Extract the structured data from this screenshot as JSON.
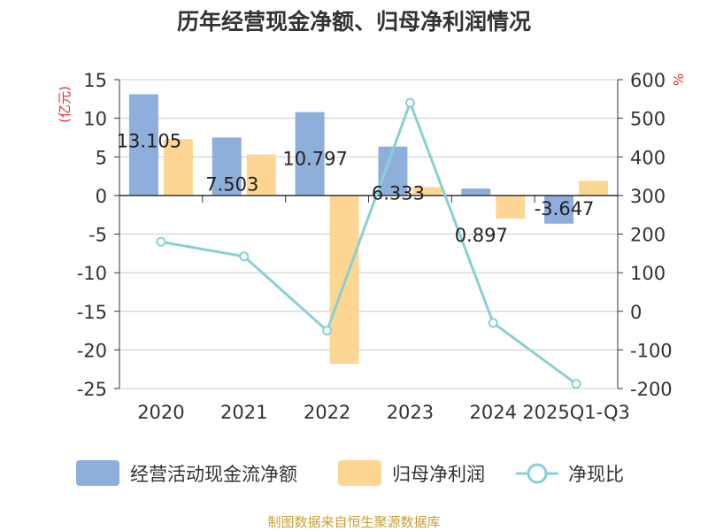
{
  "chart_data": {
    "type": "bar",
    "title": "历年经营现金净额、归母净利润情况",
    "categories": [
      "2020",
      "2021",
      "2022",
      "2023",
      "2024",
      "2025Q1-Q3"
    ],
    "series": [
      {
        "name": "经营活动现金流净额",
        "type": "bar",
        "axis": "left",
        "color": "#8eaedb",
        "values": [
          13.105,
          7.503,
          10.797,
          6.333,
          0.897,
          -3.647
        ],
        "labels": [
          "13.105",
          "7.503",
          "10.797",
          "6.333",
          "0.897",
          "-3.647"
        ]
      },
      {
        "name": "归母净利润",
        "type": "bar",
        "axis": "left",
        "color": "#fdd694",
        "values": [
          7.3,
          5.3,
          -21.8,
          1.1,
          -3.0,
          1.9
        ]
      },
      {
        "name": "净现比",
        "type": "line",
        "axis": "right",
        "color": "#87d1d4",
        "values": [
          180,
          142,
          -50,
          540,
          -30,
          -188
        ]
      }
    ],
    "y_left": {
      "unit": "(亿元)",
      "min": -25,
      "max": 15,
      "step": 5,
      "ticks": [
        "15",
        "10",
        "5",
        "0",
        "-5",
        "-10",
        "-15",
        "-20",
        "-25"
      ]
    },
    "y_right": {
      "unit": "%",
      "min": -200,
      "max": 600,
      "step": 100,
      "ticks": [
        "600",
        "500",
        "400",
        "300",
        "200",
        "100",
        "0",
        "-100",
        "-200"
      ]
    },
    "legend": [
      "经营活动现金流净额",
      "归母净利润",
      "净现比"
    ],
    "grid": true,
    "legend_position": "bottom"
  },
  "source": "制图数据来自恒生聚源数据库"
}
